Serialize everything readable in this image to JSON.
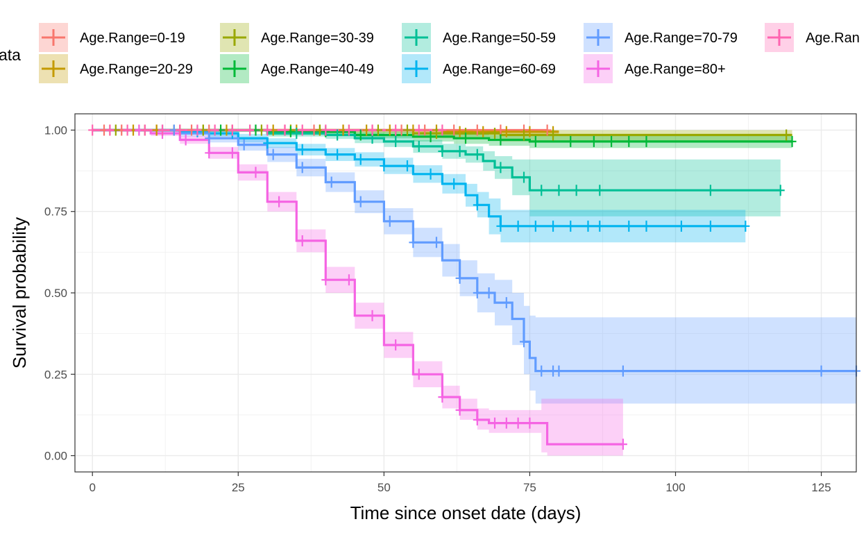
{
  "chart_data": {
    "type": "line",
    "title": "",
    "xlabel": "Time since onset date (days)",
    "ylabel": "Survival probability",
    "xlim": [
      -3,
      131
    ],
    "ylim": [
      -0.05,
      1.05
    ],
    "x_ticks": [
      0,
      25,
      50,
      75,
      100,
      125
    ],
    "y_ticks": [
      0.0,
      0.25,
      0.5,
      0.75,
      1.0
    ],
    "x_tick_labels": [
      "0",
      "25",
      "50",
      "75",
      "100",
      "125"
    ],
    "y_tick_labels": [
      "0.00",
      "0.25",
      "0.50",
      "0.75",
      "1.00"
    ],
    "grid": true,
    "legend": {
      "title": "ata",
      "placement": "top"
    },
    "series": [
      {
        "name": "Age.Range=0-19",
        "color": "#F8766D",
        "points": [
          [
            0,
            1.0
          ],
          [
            78,
            1.0
          ]
        ],
        "ci": [
          [
            0,
            1.0,
            1.0
          ],
          [
            78,
            1.0,
            1.0
          ]
        ],
        "censor_x": [
          2,
          5,
          8,
          11,
          14,
          17,
          20,
          24,
          28,
          33,
          38,
          43,
          48,
          53,
          57,
          62,
          66,
          70,
          74,
          78
        ]
      },
      {
        "name": "Age.Range=20-29",
        "color": "#C49A00",
        "points": [
          [
            0,
            1.0
          ],
          [
            55,
            1.0
          ],
          [
            60,
            0.995
          ],
          [
            80,
            0.995
          ]
        ],
        "ci": [
          [
            0,
            1.0,
            1.0
          ],
          [
            55,
            0.99,
            1.0
          ],
          [
            60,
            0.985,
            1.0
          ],
          [
            80,
            0.985,
            1.0
          ]
        ],
        "censor_x": [
          3,
          7,
          11,
          15,
          19,
          23,
          27,
          31,
          35,
          39,
          43,
          47,
          51,
          55,
          59,
          63,
          67,
          71,
          75,
          79
        ]
      },
      {
        "name": "Age.Range=30-39",
        "color": "#99A800",
        "points": [
          [
            0,
            1.0
          ],
          [
            40,
            1.0
          ],
          [
            55,
            0.99
          ],
          [
            70,
            0.985
          ],
          [
            120,
            0.985
          ]
        ],
        "ci": [
          [
            0,
            1.0,
            1.0
          ],
          [
            40,
            0.99,
            1.0
          ],
          [
            55,
            0.975,
            1.0
          ],
          [
            70,
            0.965,
            1.0
          ],
          [
            120,
            0.965,
            1.0
          ]
        ],
        "censor_x": [
          4,
          9,
          14,
          19,
          24,
          29,
          34,
          39,
          44,
          49,
          54,
          59,
          64,
          69,
          74,
          79,
          119
        ]
      },
      {
        "name": "Age.Range=40-49",
        "color": "#00B938",
        "points": [
          [
            0,
            1.0
          ],
          [
            20,
            1.0
          ],
          [
            30,
            0.995
          ],
          [
            45,
            0.985
          ],
          [
            55,
            0.98
          ],
          [
            62,
            0.975
          ],
          [
            68,
            0.97
          ],
          [
            75,
            0.965
          ],
          [
            120,
            0.965
          ]
        ],
        "ci": [
          [
            0,
            1.0,
            1.0
          ],
          [
            20,
            0.995,
            1.0
          ],
          [
            30,
            0.985,
            1.0
          ],
          [
            45,
            0.975,
            0.995
          ],
          [
            55,
            0.965,
            0.99
          ],
          [
            62,
            0.958,
            0.988
          ],
          [
            68,
            0.952,
            0.985
          ],
          [
            75,
            0.945,
            0.982
          ],
          [
            120,
            0.945,
            0.982
          ]
        ],
        "censor_x": [
          22,
          28,
          34,
          40,
          46,
          52,
          58,
          64,
          70,
          76,
          82,
          86,
          89,
          92,
          95,
          120
        ]
      },
      {
        "name": "Age.Range=50-59",
        "color": "#00BF96",
        "points": [
          [
            0,
            1.0
          ],
          [
            20,
            1.0
          ],
          [
            30,
            0.99
          ],
          [
            40,
            0.985
          ],
          [
            45,
            0.975
          ],
          [
            50,
            0.965
          ],
          [
            55,
            0.95
          ],
          [
            60,
            0.935
          ],
          [
            64,
            0.925
          ],
          [
            67,
            0.905
          ],
          [
            69,
            0.885
          ],
          [
            72,
            0.855
          ],
          [
            75,
            0.815
          ],
          [
            118,
            0.815
          ]
        ],
        "ci": [
          [
            0,
            1.0,
            1.0
          ],
          [
            20,
            0.995,
            1.0
          ],
          [
            30,
            0.98,
            1.0
          ],
          [
            40,
            0.973,
            0.995
          ],
          [
            45,
            0.96,
            0.99
          ],
          [
            50,
            0.948,
            0.982
          ],
          [
            55,
            0.93,
            0.97
          ],
          [
            60,
            0.912,
            0.958
          ],
          [
            64,
            0.9,
            0.95
          ],
          [
            67,
            0.875,
            0.935
          ],
          [
            69,
            0.85,
            0.92
          ],
          [
            72,
            0.8,
            0.91
          ],
          [
            75,
            0.735,
            0.91
          ],
          [
            118,
            0.735,
            0.91
          ]
        ],
        "censor_x": [
          35,
          42,
          48,
          52,
          56,
          60,
          63,
          66,
          70,
          74,
          77,
          80,
          83,
          87,
          106,
          118
        ]
      },
      {
        "name": "Age.Range=60-69",
        "color": "#00B4EF",
        "points": [
          [
            0,
            1.0
          ],
          [
            10,
            1.0
          ],
          [
            15,
            0.995
          ],
          [
            20,
            0.99
          ],
          [
            25,
            0.975
          ],
          [
            30,
            0.96
          ],
          [
            35,
            0.94
          ],
          [
            40,
            0.925
          ],
          [
            45,
            0.91
          ],
          [
            50,
            0.89
          ],
          [
            55,
            0.865
          ],
          [
            60,
            0.835
          ],
          [
            64,
            0.8
          ],
          [
            66,
            0.77
          ],
          [
            68,
            0.735
          ],
          [
            70,
            0.705
          ],
          [
            112,
            0.705
          ]
        ],
        "ci": [
          [
            0,
            1.0,
            1.0
          ],
          [
            10,
            0.995,
            1.0
          ],
          [
            15,
            0.987,
            1.0
          ],
          [
            20,
            0.98,
            1.0
          ],
          [
            25,
            0.962,
            0.988
          ],
          [
            30,
            0.945,
            0.975
          ],
          [
            35,
            0.922,
            0.958
          ],
          [
            40,
            0.905,
            0.945
          ],
          [
            45,
            0.888,
            0.932
          ],
          [
            50,
            0.865,
            0.915
          ],
          [
            55,
            0.838,
            0.892
          ],
          [
            60,
            0.805,
            0.865
          ],
          [
            64,
            0.765,
            0.835
          ],
          [
            66,
            0.732,
            0.81
          ],
          [
            68,
            0.68,
            0.79
          ],
          [
            70,
            0.655,
            0.755
          ],
          [
            112,
            0.655,
            0.755
          ]
        ],
        "censor_x": [
          12,
          18,
          24,
          30,
          36,
          42,
          46,
          50,
          54,
          58,
          62,
          66,
          70,
          73,
          76,
          79,
          82,
          85,
          87,
          92,
          95,
          101,
          106,
          112
        ]
      },
      {
        "name": "Age.Range=70-79",
        "color": "#619CFF",
        "points": [
          [
            0,
            1.0
          ],
          [
            10,
            1.0
          ],
          [
            15,
            0.99
          ],
          [
            20,
            0.975
          ],
          [
            25,
            0.955
          ],
          [
            30,
            0.925
          ],
          [
            35,
            0.885
          ],
          [
            40,
            0.84
          ],
          [
            45,
            0.78
          ],
          [
            50,
            0.72
          ],
          [
            55,
            0.655
          ],
          [
            60,
            0.6
          ],
          [
            63,
            0.545
          ],
          [
            66,
            0.5
          ],
          [
            69,
            0.47
          ],
          [
            72,
            0.42
          ],
          [
            74,
            0.35
          ],
          [
            75,
            0.3
          ],
          [
            76,
            0.26
          ],
          [
            131,
            0.26
          ]
        ],
        "ci": [
          [
            0,
            1.0,
            1.0
          ],
          [
            10,
            0.995,
            1.0
          ],
          [
            15,
            0.98,
            1.0
          ],
          [
            20,
            0.962,
            0.99
          ],
          [
            25,
            0.937,
            0.973
          ],
          [
            30,
            0.902,
            0.948
          ],
          [
            35,
            0.858,
            0.912
          ],
          [
            40,
            0.81,
            0.87
          ],
          [
            45,
            0.745,
            0.815
          ],
          [
            50,
            0.68,
            0.76
          ],
          [
            55,
            0.61,
            0.7
          ],
          [
            60,
            0.55,
            0.65
          ],
          [
            63,
            0.49,
            0.6
          ],
          [
            66,
            0.44,
            0.56
          ],
          [
            69,
            0.4,
            0.54
          ],
          [
            72,
            0.34,
            0.5
          ],
          [
            74,
            0.25,
            0.46
          ],
          [
            75,
            0.2,
            0.43
          ],
          [
            76,
            0.16,
            0.425
          ],
          [
            131,
            0.16,
            0.425
          ]
        ],
        "censor_x": [
          14,
          20,
          26,
          31,
          36,
          41,
          46,
          51,
          55,
          59,
          63,
          66,
          68,
          71,
          74,
          77,
          79,
          80,
          91,
          125,
          131
        ]
      },
      {
        "name": "Age.Range=80+",
        "color": "#F564E3",
        "points": [
          [
            0,
            1.0
          ],
          [
            5,
            1.0
          ],
          [
            10,
            0.99
          ],
          [
            15,
            0.97
          ],
          [
            20,
            0.93
          ],
          [
            25,
            0.87
          ],
          [
            30,
            0.78
          ],
          [
            35,
            0.66
          ],
          [
            40,
            0.54
          ],
          [
            45,
            0.43
          ],
          [
            50,
            0.34
          ],
          [
            55,
            0.25
          ],
          [
            60,
            0.18
          ],
          [
            63,
            0.14
          ],
          [
            66,
            0.11
          ],
          [
            68,
            0.1
          ],
          [
            77,
            0.1
          ],
          [
            78,
            0.035
          ],
          [
            91,
            0.035
          ]
        ],
        "ci": [
          [
            0,
            1.0,
            1.0
          ],
          [
            5,
            0.995,
            1.0
          ],
          [
            10,
            0.982,
            0.998
          ],
          [
            15,
            0.958,
            0.982
          ],
          [
            20,
            0.912,
            0.948
          ],
          [
            25,
            0.845,
            0.895
          ],
          [
            30,
            0.75,
            0.81
          ],
          [
            35,
            0.625,
            0.695
          ],
          [
            40,
            0.5,
            0.58
          ],
          [
            45,
            0.39,
            0.47
          ],
          [
            50,
            0.3,
            0.38
          ],
          [
            55,
            0.21,
            0.29
          ],
          [
            60,
            0.145,
            0.215
          ],
          [
            63,
            0.11,
            0.175
          ],
          [
            66,
            0.08,
            0.145
          ],
          [
            68,
            0.07,
            0.14
          ],
          [
            77,
            0.01,
            0.175
          ],
          [
            78,
            0.0,
            0.175
          ],
          [
            91,
            0.0,
            0.175
          ]
        ],
        "censor_x": [
          8,
          12,
          16,
          20,
          24,
          28,
          32,
          36,
          40,
          44,
          48,
          52,
          56,
          60,
          63,
          66,
          69,
          71,
          73,
          75,
          91
        ]
      },
      {
        "name": "Age.Ran",
        "color": "#FF64B0",
        "points": [
          [
            0,
            1.0
          ],
          [
            60,
            1.0
          ]
        ],
        "ci": [
          [
            0,
            1.0,
            1.0
          ],
          [
            60,
            1.0,
            1.0
          ]
        ],
        "censor_x": [
          0,
          3,
          6,
          9,
          12,
          15,
          18,
          21,
          24,
          27,
          30,
          33,
          36,
          40,
          44,
          48,
          52,
          56,
          60
        ]
      }
    ]
  }
}
